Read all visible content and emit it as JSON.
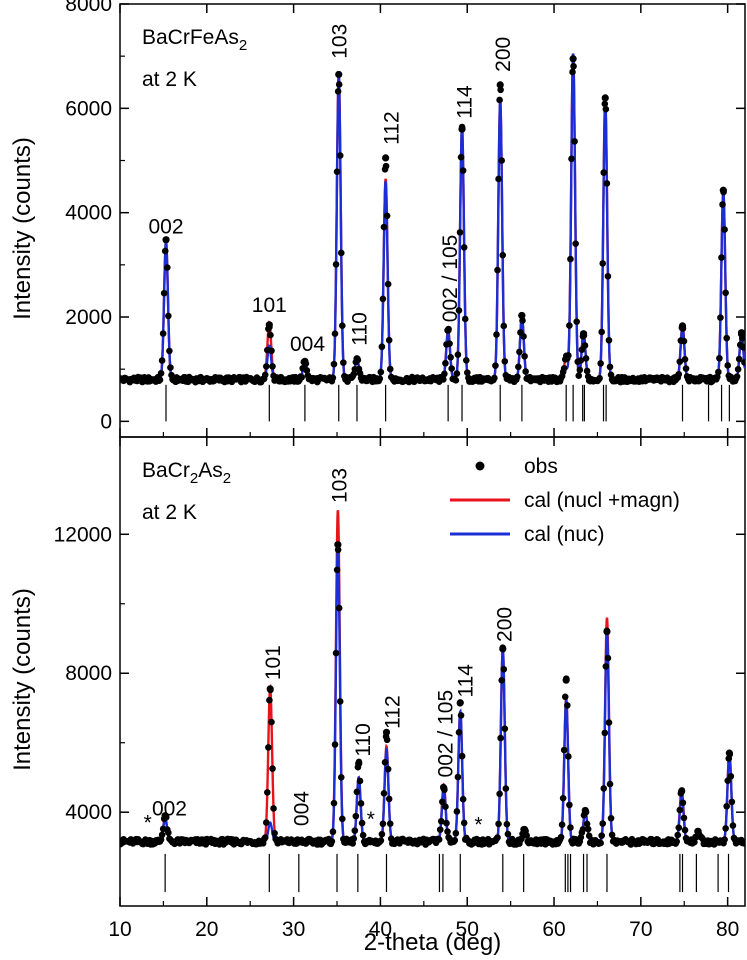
{
  "chart_data": {
    "type": "line",
    "xlabel": "2-theta (deg)",
    "xlim": [
      10,
      82
    ],
    "x_ticks": [
      10,
      20,
      30,
      40,
      50,
      60,
      70,
      80
    ],
    "colors": {
      "obs": "#000000",
      "cal_magn": "#e8141b",
      "cal_nuc": "#1c2fd6"
    },
    "legend": {
      "placement": "top-right of lower panel",
      "entries": [
        {
          "key": "obs",
          "label": "obs"
        },
        {
          "key": "cal_magn",
          "label": "cal (nucl +magn)"
        },
        {
          "key": "cal_nuc",
          "label": "cal (nuc)"
        }
      ]
    },
    "panels": [
      {
        "id": "top",
        "ylabel": "Intensity (counts)",
        "ylim": [
          -300,
          8000
        ],
        "y_ticks": [
          0,
          2000,
          4000,
          6000,
          8000
        ],
        "annotation_line1": "BaCrFeAs",
        "annotation_sub": "2",
        "annotation_line2": "at 2 K",
        "baseline": 800,
        "tick_row_y": [
          0,
          700
        ],
        "reflection_ticks": [
          15.3,
          27.2,
          31.3,
          35.2,
          37.3,
          40.6,
          47.8,
          49.4,
          53.8,
          56.3,
          61.4,
          62.2,
          63.3,
          63.5,
          65.7,
          66.0,
          74.8,
          77.8,
          79.3,
          80.2
        ],
        "peaks": [
          {
            "x": 15.3,
            "nuc": 3450,
            "mag": 3450,
            "obs": 3480
          },
          {
            "x": 27.2,
            "nuc": 1450,
            "mag": 1900,
            "obs": 1850
          },
          {
            "x": 31.3,
            "nuc": 1150,
            "mag": 1150,
            "obs": 1150
          },
          {
            "x": 35.2,
            "nuc": 6600,
            "mag": 6700,
            "obs": 6650
          },
          {
            "x": 37.3,
            "nuc": 1200,
            "mag": 1200,
            "obs": 1200
          },
          {
            "x": 40.6,
            "nuc": 4600,
            "mag": 4650,
            "obs": 5050
          },
          {
            "x": 47.8,
            "nuc": 1700,
            "mag": 1750,
            "obs": 1750
          },
          {
            "x": 49.4,
            "nuc": 5650,
            "mag": 5650,
            "obs": 5600
          },
          {
            "x": 53.8,
            "nuc": 6150,
            "mag": 6150,
            "obs": 6450
          },
          {
            "x": 56.3,
            "nuc": 2000,
            "mag": 2000,
            "obs": 2030
          },
          {
            "x": 61.4,
            "nuc": 1000,
            "mag": 1250,
            "obs": 1200
          },
          {
            "x": 62.2,
            "nuc": 7050,
            "mag": 7050,
            "obs": 6950
          },
          {
            "x": 63.4,
            "nuc": 1700,
            "mag": 1700,
            "obs": 1680
          },
          {
            "x": 65.9,
            "nuc": 6100,
            "mag": 6200,
            "obs": 6200
          },
          {
            "x": 74.8,
            "nuc": 1800,
            "mag": 1850,
            "obs": 1830
          },
          {
            "x": 79.5,
            "nuc": 4400,
            "mag": 4400,
            "obs": 4430
          },
          {
            "x": 81.6,
            "nuc": 1700,
            "mag": 1700,
            "obs": 1700
          }
        ],
        "peak_labels": [
          {
            "text": "002",
            "x": 15.3,
            "y": 3600,
            "rot": 0
          },
          {
            "text": "101",
            "x": 27.2,
            "y": 2100,
            "rot": 0
          },
          {
            "text": "004",
            "x": 31.6,
            "y": 1350,
            "rot": 0
          },
          {
            "text": "103",
            "x": 35.3,
            "y": 6950,
            "rot": -90
          },
          {
            "text": "110",
            "x": 37.6,
            "y": 1450,
            "rot": -90
          },
          {
            "text": "112",
            "x": 41.3,
            "y": 5300,
            "rot": -90
          },
          {
            "text": "002 / 105",
            "x": 48.0,
            "y": 1900,
            "rot": -90
          },
          {
            "text": "114",
            "x": 49.7,
            "y": 5800,
            "rot": -90
          },
          {
            "text": "200",
            "x": 54.1,
            "y": 6700,
            "rot": -90
          }
        ],
        "stars": []
      },
      {
        "id": "bottom",
        "ylabel": "Intensity (counts)",
        "ylim": [
          1300,
          14800
        ],
        "y_ticks": [
          4000,
          8000,
          12000
        ],
        "annotation_line1": "BaCr",
        "annotation_sub": "2",
        "annotation_line1b": "As",
        "annotation_sub2": "2",
        "annotation_line2": "at 2 K",
        "baseline": 3150,
        "tick_row_y": [
          1700,
          2800
        ],
        "reflection_ticks": [
          15.2,
          27.2,
          30.6,
          35.0,
          37.4,
          40.7,
          46.8,
          47.2,
          49.2,
          54.1,
          56.5,
          61.3,
          61.6,
          61.9,
          63.4,
          63.8,
          66.1,
          74.5,
          74.8,
          76.4,
          78.9,
          80.1
        ],
        "peaks": [
          {
            "x": 15.2,
            "nuc": 3800,
            "mag": 3850,
            "obs": 3900
          },
          {
            "x": 27.3,
            "nuc": 3700,
            "mag": 7600,
            "obs": 7550
          },
          {
            "x": 35.1,
            "nuc": 11700,
            "mag": 12700,
            "obs": 11700
          },
          {
            "x": 37.5,
            "nuc": 5000,
            "mag": 5000,
            "obs": 5400
          },
          {
            "x": 40.7,
            "nuc": 5800,
            "mag": 5900,
            "obs": 6300
          },
          {
            "x": 47.3,
            "nuc": 4700,
            "mag": 4800,
            "obs": 4700
          },
          {
            "x": 49.2,
            "nuc": 6900,
            "mag": 6900,
            "obs": 7150
          },
          {
            "x": 54.1,
            "nuc": 8700,
            "mag": 8700,
            "obs": 8700
          },
          {
            "x": 56.6,
            "nuc": 3500,
            "mag": 3500,
            "obs": 3500
          },
          {
            "x": 61.4,
            "nuc": 7200,
            "mag": 7300,
            "obs": 7800
          },
          {
            "x": 63.6,
            "nuc": 4000,
            "mag": 4050,
            "obs": 4050
          },
          {
            "x": 66.1,
            "nuc": 9200,
            "mag": 9600,
            "obs": 9200
          },
          {
            "x": 74.7,
            "nuc": 4500,
            "mag": 4650,
            "obs": 4600
          },
          {
            "x": 76.6,
            "nuc": 3450,
            "mag": 3450,
            "obs": 3450
          },
          {
            "x": 80.2,
            "nuc": 5700,
            "mag": 5700,
            "obs": 5700
          }
        ],
        "peak_labels": [
          {
            "text": "002",
            "x": 15.7,
            "y": 3900,
            "rot": 0
          },
          {
            "text": "101",
            "x": 27.6,
            "y": 7800,
            "rot": -90
          },
          {
            "text": "004",
            "x": 30.9,
            "y": 3600,
            "rot": -90
          },
          {
            "text": "103",
            "x": 35.3,
            "y": 12900,
            "rot": -90
          },
          {
            "text": "110",
            "x": 38.0,
            "y": 5600,
            "rot": -90
          },
          {
            "text": "112",
            "x": 41.4,
            "y": 6400,
            "rot": -90
          },
          {
            "text": "002 / 105",
            "x": 47.5,
            "y": 5000,
            "rot": -90
          },
          {
            "text": "114",
            "x": 49.8,
            "y": 7300,
            "rot": -90
          },
          {
            "text": "200",
            "x": 54.3,
            "y": 8900,
            "rot": -90
          }
        ],
        "stars": [
          {
            "text": "*",
            "x": 13.2,
            "y": 3500
          },
          {
            "text": "*",
            "x": 38.9,
            "y": 3600
          },
          {
            "text": "*",
            "x": 51.3,
            "y": 3450
          }
        ]
      }
    ]
  }
}
